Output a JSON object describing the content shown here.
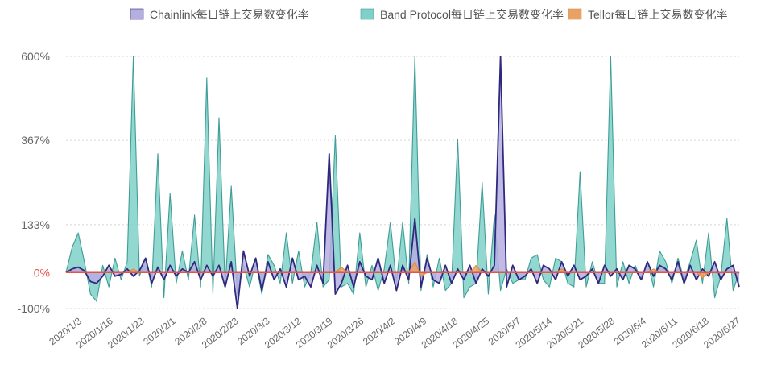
{
  "chart_data": {
    "type": "area",
    "legend_position": "top",
    "grid": true,
    "y_ticks": [
      {
        "value": 600,
        "label": "600%"
      },
      {
        "value": 367,
        "label": "367%"
      },
      {
        "value": 133,
        "label": "133%"
      },
      {
        "value": 0,
        "label": "0%"
      },
      {
        "value": -100,
        "label": "-100%"
      }
    ],
    "ylim": [
      -100,
      600
    ],
    "x_tick_labels": [
      "2020/1/3",
      "2020/1/16",
      "2020/1/23",
      "2020/2/1",
      "2020/2/8",
      "2020/2/23",
      "2020/3/3",
      "2020/3/12",
      "2020/3/19",
      "2020/3/26",
      "2020/4/2",
      "2020/4/9",
      "2020/4/18",
      "2020/4/25",
      "2020/5/7",
      "2020/5/14",
      "2020/5/21",
      "2020/5/28",
      "2020/6/4",
      "2020/6/11",
      "2020/6/18",
      "2020/6/27"
    ],
    "series": [
      {
        "name": "Band Protocol每日链上交易数变化率",
        "color": "#7fd0c8",
        "stroke": "#3e9e96",
        "points": [
          [
            0,
            0
          ],
          [
            1,
            70
          ],
          [
            2,
            110
          ],
          [
            3,
            30
          ],
          [
            4,
            -60
          ],
          [
            5,
            -80
          ],
          [
            6,
            20
          ],
          [
            7,
            -40
          ],
          [
            8,
            40
          ],
          [
            9,
            -20
          ],
          [
            10,
            30
          ],
          [
            11,
            600
          ],
          [
            12,
            -10
          ],
          [
            13,
            40
          ],
          [
            14,
            -40
          ],
          [
            15,
            330
          ],
          [
            16,
            -70
          ],
          [
            17,
            220
          ],
          [
            18,
            -30
          ],
          [
            19,
            60
          ],
          [
            20,
            -20
          ],
          [
            21,
            160
          ],
          [
            22,
            -40
          ],
          [
            23,
            540
          ],
          [
            24,
            -60
          ],
          [
            25,
            430
          ],
          [
            26,
            -40
          ],
          [
            27,
            240
          ],
          [
            28,
            -60
          ],
          [
            29,
            20
          ],
          [
            30,
            -40
          ],
          [
            31,
            30
          ],
          [
            32,
            -60
          ],
          [
            33,
            50
          ],
          [
            34,
            20
          ],
          [
            35,
            -30
          ],
          [
            36,
            110
          ],
          [
            37,
            -30
          ],
          [
            38,
            60
          ],
          [
            39,
            -40
          ],
          [
            40,
            0
          ],
          [
            41,
            140
          ],
          [
            42,
            -40
          ],
          [
            43,
            -20
          ],
          [
            44,
            380
          ],
          [
            45,
            -40
          ],
          [
            46,
            -30
          ],
          [
            47,
            -60
          ],
          [
            48,
            110
          ],
          [
            49,
            -40
          ],
          [
            50,
            20
          ],
          [
            51,
            -50
          ],
          [
            52,
            10
          ],
          [
            53,
            140
          ],
          [
            54,
            -30
          ],
          [
            55,
            140
          ],
          [
            56,
            -30
          ],
          [
            57,
            600
          ],
          [
            58,
            -50
          ],
          [
            59,
            50
          ],
          [
            60,
            -40
          ],
          [
            61,
            40
          ],
          [
            62,
            -50
          ],
          [
            63,
            -30
          ],
          [
            64,
            370
          ],
          [
            65,
            -70
          ],
          [
            66,
            -40
          ],
          [
            67,
            -30
          ],
          [
            68,
            250
          ],
          [
            69,
            -60
          ],
          [
            70,
            160
          ],
          [
            71,
            -50
          ],
          [
            72,
            10
          ],
          [
            73,
            -30
          ],
          [
            74,
            -20
          ],
          [
            75,
            -20
          ],
          [
            76,
            40
          ],
          [
            77,
            50
          ],
          [
            78,
            -20
          ],
          [
            79,
            -40
          ],
          [
            80,
            40
          ],
          [
            81,
            30
          ],
          [
            82,
            -30
          ],
          [
            83,
            -40
          ],
          [
            84,
            280
          ],
          [
            85,
            -40
          ],
          [
            86,
            30
          ],
          [
            87,
            -30
          ],
          [
            88,
            -30
          ],
          [
            89,
            600
          ],
          [
            90,
            -40
          ],
          [
            91,
            30
          ],
          [
            92,
            -30
          ],
          [
            93,
            20
          ],
          [
            94,
            -20
          ],
          [
            95,
            30
          ],
          [
            96,
            -40
          ],
          [
            97,
            60
          ],
          [
            98,
            30
          ],
          [
            99,
            -30
          ],
          [
            100,
            40
          ],
          [
            101,
            -20
          ],
          [
            102,
            30
          ],
          [
            103,
            90
          ],
          [
            104,
            -30
          ],
          [
            105,
            110
          ],
          [
            106,
            -70
          ],
          [
            107,
            -10
          ],
          [
            108,
            150
          ],
          [
            109,
            -50
          ],
          [
            110,
            0
          ]
        ]
      },
      {
        "name": "Chainlink每日链上交易数变化率",
        "color": "#b5aee0",
        "stroke": "#2d2a7e",
        "points": [
          [
            0,
            0
          ],
          [
            1,
            10
          ],
          [
            2,
            15
          ],
          [
            3,
            5
          ],
          [
            4,
            -25
          ],
          [
            5,
            -30
          ],
          [
            6,
            -10
          ],
          [
            7,
            20
          ],
          [
            8,
            -10
          ],
          [
            9,
            -5
          ],
          [
            10,
            10
          ],
          [
            11,
            -10
          ],
          [
            12,
            5
          ],
          [
            13,
            40
          ],
          [
            14,
            -30
          ],
          [
            15,
            15
          ],
          [
            16,
            -20
          ],
          [
            17,
            20
          ],
          [
            18,
            -10
          ],
          [
            19,
            10
          ],
          [
            20,
            0
          ],
          [
            21,
            30
          ],
          [
            22,
            -20
          ],
          [
            23,
            20
          ],
          [
            24,
            -10
          ],
          [
            25,
            20
          ],
          [
            26,
            -40
          ],
          [
            27,
            30
          ],
          [
            28,
            -100
          ],
          [
            29,
            60
          ],
          [
            30,
            -10
          ],
          [
            31,
            40
          ],
          [
            32,
            -50
          ],
          [
            33,
            30
          ],
          [
            34,
            -20
          ],
          [
            35,
            10
          ],
          [
            36,
            -40
          ],
          [
            37,
            40
          ],
          [
            38,
            -20
          ],
          [
            39,
            -10
          ],
          [
            40,
            -40
          ],
          [
            41,
            20
          ],
          [
            42,
            -30
          ],
          [
            43,
            330
          ],
          [
            44,
            -60
          ],
          [
            45,
            -30
          ],
          [
            46,
            20
          ],
          [
            47,
            -40
          ],
          [
            48,
            30
          ],
          [
            49,
            -10
          ],
          [
            50,
            -20
          ],
          [
            51,
            40
          ],
          [
            52,
            -30
          ],
          [
            53,
            20
          ],
          [
            54,
            -50
          ],
          [
            55,
            20
          ],
          [
            56,
            -20
          ],
          [
            57,
            150
          ],
          [
            58,
            -40
          ],
          [
            59,
            40
          ],
          [
            60,
            -20
          ],
          [
            61,
            -30
          ],
          [
            62,
            20
          ],
          [
            63,
            -30
          ],
          [
            64,
            10
          ],
          [
            65,
            -20
          ],
          [
            66,
            20
          ],
          [
            67,
            -30
          ],
          [
            68,
            10
          ],
          [
            69,
            -10
          ],
          [
            70,
            20
          ],
          [
            71,
            600
          ],
          [
            72,
            -40
          ],
          [
            73,
            20
          ],
          [
            74,
            -20
          ],
          [
            75,
            -10
          ],
          [
            76,
            10
          ],
          [
            77,
            -30
          ],
          [
            78,
            20
          ],
          [
            79,
            10
          ],
          [
            80,
            -20
          ],
          [
            81,
            30
          ],
          [
            82,
            -10
          ],
          [
            83,
            20
          ],
          [
            84,
            -20
          ],
          [
            85,
            -10
          ],
          [
            86,
            10
          ],
          [
            87,
            -30
          ],
          [
            88,
            20
          ],
          [
            89,
            -10
          ],
          [
            90,
            10
          ],
          [
            91,
            -20
          ],
          [
            92,
            20
          ],
          [
            93,
            10
          ],
          [
            94,
            -20
          ],
          [
            95,
            30
          ],
          [
            96,
            -10
          ],
          [
            97,
            20
          ],
          [
            98,
            10
          ],
          [
            99,
            -20
          ],
          [
            100,
            30
          ],
          [
            101,
            -30
          ],
          [
            102,
            20
          ],
          [
            103,
            -20
          ],
          [
            104,
            10
          ],
          [
            105,
            -10
          ],
          [
            106,
            30
          ],
          [
            107,
            -20
          ],
          [
            108,
            10
          ],
          [
            109,
            20
          ],
          [
            110,
            -40
          ]
        ]
      },
      {
        "name": "Tellor每日链上交易数变化率",
        "color": "#e8a265",
        "stroke": "#e08a3c",
        "points": [
          [
            0,
            0
          ],
          [
            10,
            0
          ],
          [
            11,
            10
          ],
          [
            12,
            0
          ],
          [
            44,
            0
          ],
          [
            45,
            15
          ],
          [
            46,
            0
          ],
          [
            56,
            0
          ],
          [
            57,
            30
          ],
          [
            58,
            -10
          ],
          [
            59,
            0
          ],
          [
            66,
            0
          ],
          [
            67,
            20
          ],
          [
            68,
            0
          ],
          [
            80,
            0
          ],
          [
            81,
            10
          ],
          [
            82,
            0
          ],
          [
            95,
            0
          ],
          [
            96,
            10
          ],
          [
            97,
            0
          ],
          [
            103,
            0
          ],
          [
            104,
            -15
          ],
          [
            105,
            0
          ],
          [
            110,
            0
          ]
        ]
      }
    ],
    "x_max_index": 110
  }
}
